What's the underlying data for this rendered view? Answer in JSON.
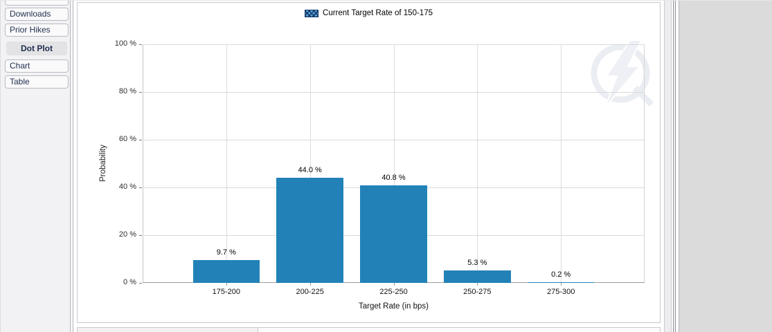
{
  "sidebar": {
    "items": [
      {
        "label": "Downloads"
      },
      {
        "label": "Prior Hikes"
      }
    ],
    "section_header": "Dot Plot",
    "view_items": [
      {
        "label": "Chart"
      },
      {
        "label": "Table"
      }
    ]
  },
  "chart_data": {
    "type": "bar",
    "legend": "Current Target Rate of 150-175",
    "legend_position": "top-center",
    "categories": [
      "175-200",
      "200-225",
      "225-250",
      "250-275",
      "275-300"
    ],
    "values": [
      9.7,
      44.0,
      40.8,
      5.3,
      0.2
    ],
    "bar_labels": [
      "9.7 %",
      "44.0 %",
      "40.8 %",
      "5.3 %",
      "0.2 %"
    ],
    "xlabel": "Target Rate (in bps)",
    "ylabel": "Probability",
    "ylim": [
      0,
      100
    ],
    "grid": true,
    "y_ticks": [
      {
        "value": 100,
        "label": "100 %"
      },
      {
        "value": 80,
        "label": "80 %"
      },
      {
        "value": 60,
        "label": "60 %"
      },
      {
        "value": 40,
        "label": "40 %"
      },
      {
        "value": 20,
        "label": "20 %"
      },
      {
        "value": 0,
        "label": "0 %"
      }
    ],
    "bar_color": "#2282b8"
  }
}
